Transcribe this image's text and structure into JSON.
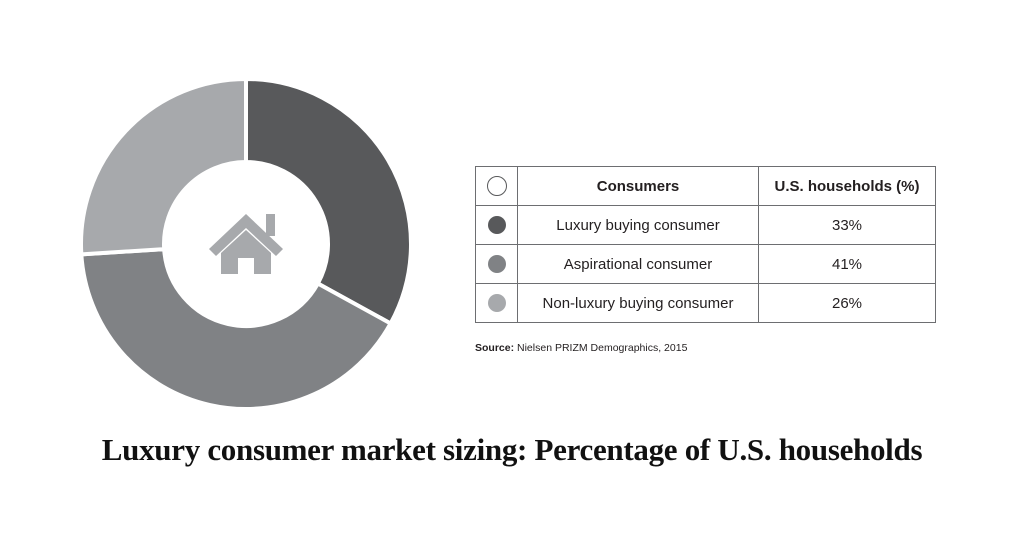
{
  "chart_data": {
    "type": "pie",
    "title": "Luxury consumer market sizing: Percentage of U.S. households",
    "categories": [
      "Luxury buying consumer",
      "Aspirational consumer",
      "Non-luxury buying consumer"
    ],
    "values": [
      33,
      41,
      26
    ],
    "colors": [
      "#58595b",
      "#808285",
      "#a7a9ac"
    ],
    "center_icon": "house-icon"
  },
  "table": {
    "header_consumers": "Consumers",
    "header_households": "U.S. households (%)",
    "rows": [
      {
        "label": "Luxury buying consumer",
        "value": "33%"
      },
      {
        "label": "Aspirational consumer",
        "value": "41%"
      },
      {
        "label": "Non-luxury buying consumer",
        "value": "26%"
      }
    ]
  },
  "source": {
    "label": "Source:",
    "text": " Nielsen PRIZM Demographics, 2015"
  },
  "title": "Luxury consumer market sizing: Percentage of U.S. households"
}
